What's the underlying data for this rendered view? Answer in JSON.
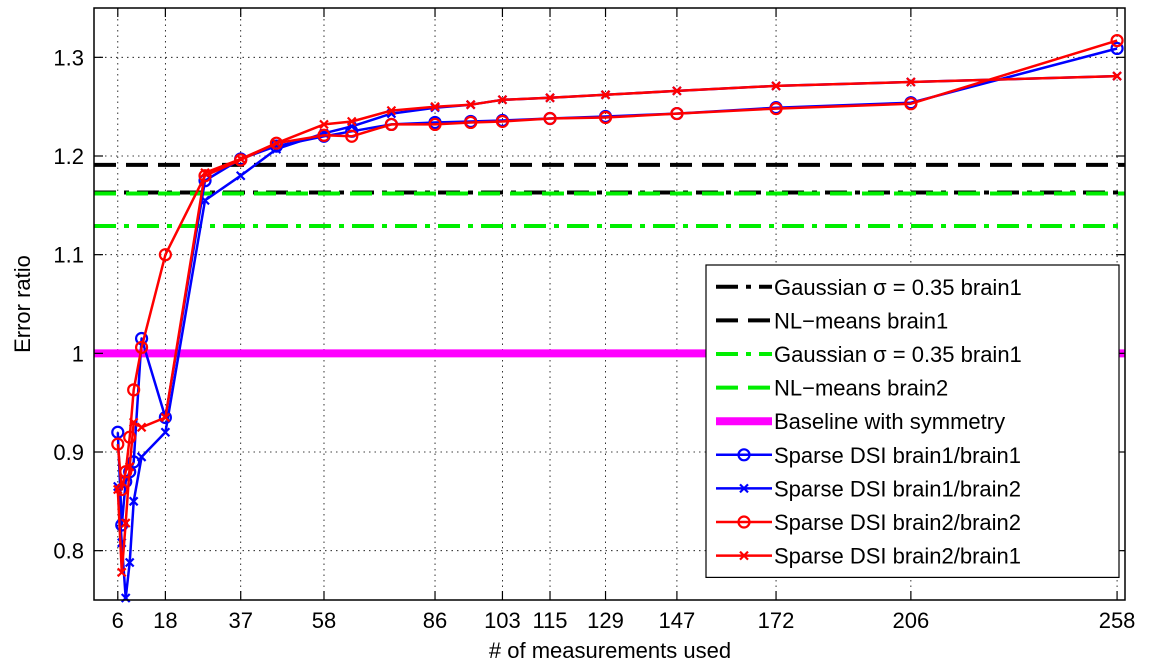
{
  "chart_data": {
    "type": "line",
    "title": "",
    "xlabel": "# of measurements used",
    "ylabel": "Error ratio",
    "xlim": [
      0,
      260
    ],
    "ylim": [
      0.75,
      1.35
    ],
    "xticks": [
      6,
      18,
      37,
      58,
      86,
      103,
      115,
      129,
      147,
      172,
      206,
      258
    ],
    "xtick_labels": [
      "6",
      "18",
      "37",
      "58",
      "86",
      "103",
      "115",
      "129",
      "147",
      "172",
      "206",
      "258"
    ],
    "yticks": [
      0.8,
      0.9,
      1.0,
      1.1,
      1.2,
      1.3
    ],
    "ytick_labels": [
      "0.8",
      "0.9",
      "1",
      "1.1",
      "1.2",
      "1.3"
    ],
    "grid": true,
    "legend_position": "bottom-right",
    "horizontal_lines": [
      {
        "name": "Gaussian σ = 0.35 brain1",
        "y": 1.163,
        "color": "#000000",
        "style": "dashdot"
      },
      {
        "name": "NL−means brain1",
        "y": 1.191,
        "color": "#000000",
        "style": "dashed"
      },
      {
        "name": "Gaussian σ = 0.35 brain1",
        "y": 1.129,
        "color": "#00ee00",
        "style": "dashdot"
      },
      {
        "name": "NL−means brain2",
        "y": 1.162,
        "color": "#00ee00",
        "style": "dashed"
      },
      {
        "name": "Baseline with symmetry",
        "y": 1.0,
        "color": "#ff00ff",
        "style": "thick"
      }
    ],
    "series": [
      {
        "name": "Sparse DSI brain1/brain1",
        "color": "#0000ff",
        "marker": "circle",
        "x": [
          6,
          7,
          8,
          9,
          10,
          12,
          18,
          28,
          37,
          46,
          58,
          65,
          75,
          86,
          95,
          103,
          115,
          129,
          147,
          172,
          206,
          258
        ],
        "y": [
          0.92,
          0.826,
          0.87,
          0.88,
          0.89,
          1.015,
          0.935,
          1.175,
          1.197,
          1.21,
          1.22,
          1.225,
          1.232,
          1.234,
          1.235,
          1.236,
          1.238,
          1.24,
          1.243,
          1.249,
          1.254,
          1.309
        ]
      },
      {
        "name": "Sparse DSI brain1/brain2",
        "color": "#0000ff",
        "marker": "x",
        "x": [
          6,
          7,
          8,
          9,
          10,
          12,
          18,
          28,
          37,
          46,
          58,
          65,
          75,
          86,
          95,
          103,
          115,
          129,
          147,
          172,
          206,
          258
        ],
        "y": [
          0.865,
          0.808,
          0.752,
          0.788,
          0.85,
          0.895,
          0.92,
          1.155,
          1.18,
          1.207,
          1.223,
          1.23,
          1.243,
          1.249,
          1.252,
          1.257,
          1.259,
          1.262,
          1.266,
          1.271,
          1.275,
          1.281
        ]
      },
      {
        "name": "Sparse DSI brain2/brain2",
        "color": "#ff0000",
        "marker": "circle",
        "x": [
          6,
          7,
          8,
          9,
          10,
          12,
          18,
          28,
          37,
          46,
          58,
          65,
          75,
          86,
          95,
          103,
          115,
          129,
          147,
          172,
          206,
          258
        ],
        "y": [
          0.908,
          0.862,
          0.88,
          0.915,
          0.963,
          1.006,
          1.1,
          1.18,
          1.196,
          1.213,
          1.221,
          1.22,
          1.232,
          1.232,
          1.234,
          1.235,
          1.238,
          1.239,
          1.243,
          1.248,
          1.253,
          1.317
        ]
      },
      {
        "name": "Sparse DSI brain2/brain1",
        "color": "#ff0000",
        "marker": "x",
        "x": [
          6,
          7,
          8,
          9,
          10,
          12,
          18,
          28,
          37,
          46,
          58,
          65,
          75,
          86,
          95,
          103,
          115,
          129,
          147,
          172,
          206,
          258
        ],
        "y": [
          0.862,
          0.778,
          0.828,
          0.885,
          0.93,
          0.925,
          0.935,
          1.183,
          1.197,
          1.213,
          1.232,
          1.235,
          1.246,
          1.25,
          1.252,
          1.257,
          1.259,
          1.262,
          1.266,
          1.271,
          1.275,
          1.281
        ]
      }
    ]
  }
}
